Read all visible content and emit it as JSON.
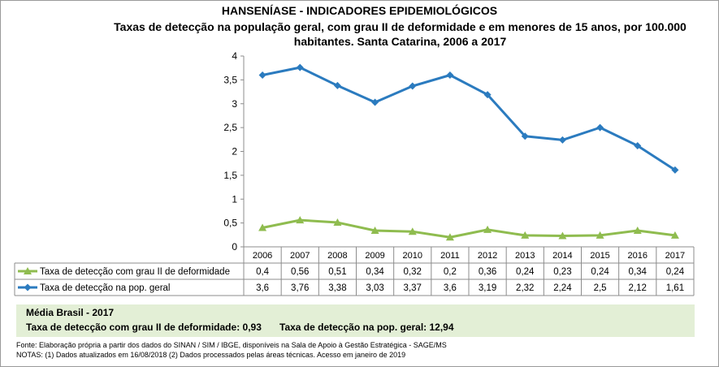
{
  "header": {
    "title": "HANSENÍASE - INDICADORES EPIDEMIOLÓGICOS",
    "subtitle_line1": "Taxas de detecção na população geral, com grau II de deformidade e em menores de 15 anos, por 100.000",
    "subtitle_line2": "habitantes. Santa Catarina, 2006 a 2017"
  },
  "chart_data": {
    "type": "line",
    "title": "Taxas de detecção na população geral, com grau II de deformidade e em menores de 15 anos, por 100.000 habitantes. Santa Catarina, 2006 a 2017",
    "categories": [
      "2006",
      "2007",
      "2008",
      "2009",
      "2010",
      "2011",
      "2012",
      "2013",
      "2014",
      "2015",
      "2016",
      "2017"
    ],
    "ylim": [
      0,
      4
    ],
    "yticks": [
      0,
      0.5,
      1,
      1.5,
      2,
      2.5,
      3,
      3.5,
      4
    ],
    "ytick_labels": [
      "0",
      "0,5",
      "1",
      "1,5",
      "2",
      "2,5",
      "3",
      "3,5",
      "4"
    ],
    "series": [
      {
        "name": "Taxa de detecção com grau II de deformidade",
        "color": "#8fbc4f",
        "marker": "triangle",
        "values": [
          0.4,
          0.56,
          0.51,
          0.34,
          0.32,
          0.2,
          0.36,
          0.24,
          0.23,
          0.24,
          0.34,
          0.24
        ],
        "labels": [
          "0,4",
          "0,56",
          "0,51",
          "0,34",
          "0,32",
          "0,2",
          "0,36",
          "0,24",
          "0,23",
          "0,24",
          "0,34",
          "0,24"
        ]
      },
      {
        "name": "Taxa de detecção na pop. geral",
        "color": "#2b7bbf",
        "marker": "diamond",
        "values": [
          3.6,
          3.76,
          3.38,
          3.03,
          3.37,
          3.6,
          3.19,
          2.32,
          2.24,
          2.5,
          2.12,
          1.61
        ],
        "labels": [
          "3,6",
          "3,76",
          "3,38",
          "3,03",
          "3,37",
          "3,6",
          "3,19",
          "2,32",
          "2,24",
          "2,5",
          "2,12",
          "1,61"
        ]
      }
    ],
    "data_table": true
  },
  "brasil": {
    "heading": "Média Brasil - 2017",
    "grau2_text": "Taxa de detecção com grau II de deformidade: 0,93",
    "geral_text": "Taxa de detecção na pop. geral: 12,94"
  },
  "footer": {
    "fonte": "Fonte: Elaboração própria a partir dos dados do SINAN / SIM / IBGE, disponíveis na Sala de Apoio à Gestão Estratégica - SAGE/MS",
    "notas": "NOTAS: (1) Dados atualizados em 16/08/2018 (2) Dados processados pelas áreas técnicas. Acesso em janeiro de 2019"
  }
}
